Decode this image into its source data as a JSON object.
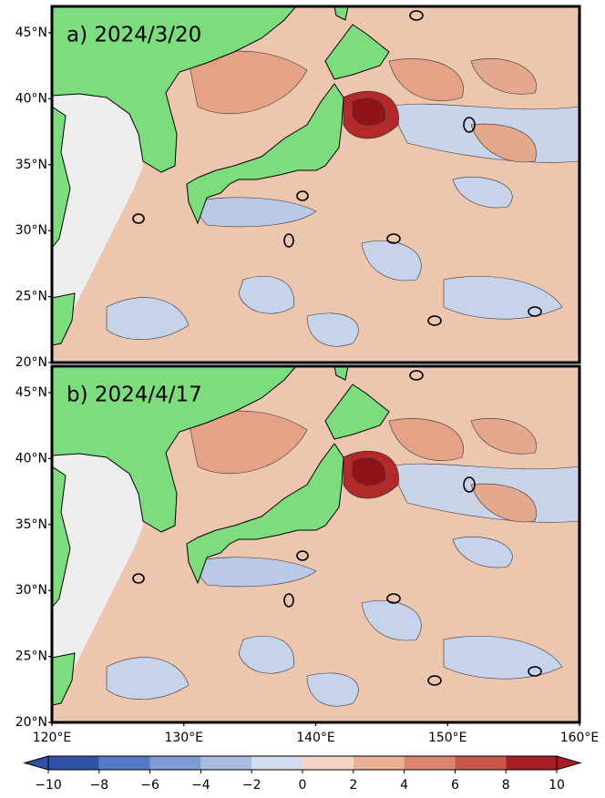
{
  "panels": [
    {
      "label": "a) 2024/3/20"
    },
    {
      "label": "b) 2024/4/17"
    }
  ],
  "lon_range": [
    120,
    160
  ],
  "lat_range": [
    20,
    47
  ],
  "lon_ticks": [
    {
      "value": 120,
      "label": "120°E"
    },
    {
      "value": 130,
      "label": "130°E"
    },
    {
      "value": 140,
      "label": "140°E"
    },
    {
      "value": 150,
      "label": "150°E"
    },
    {
      "value": 160,
      "label": "160°E"
    }
  ],
  "lat_ticks": [
    {
      "value": 20,
      "label": "20°N"
    },
    {
      "value": 25,
      "label": "25°N"
    },
    {
      "value": 30,
      "label": "30°N"
    },
    {
      "value": 35,
      "label": "35°N"
    },
    {
      "value": 40,
      "label": "40°N"
    },
    {
      "value": 45,
      "label": "45°N"
    }
  ],
  "colorbar": {
    "ticks": [
      {
        "value": -10,
        "label": "−10"
      },
      {
        "value": -8,
        "label": "−8"
      },
      {
        "value": -6,
        "label": "−6"
      },
      {
        "value": -4,
        "label": "−4"
      },
      {
        "value": -2,
        "label": "−2"
      },
      0,
      2,
      4,
      6,
      8,
      10
    ],
    "colors": [
      "#2f52a6",
      "#5478c4",
      "#7f9bd3",
      "#a9bde0",
      "#d2dcee",
      "#f3d6c5",
      "#eab196",
      "#db8770",
      "#c5584b",
      "#a61f26"
    ]
  }
}
